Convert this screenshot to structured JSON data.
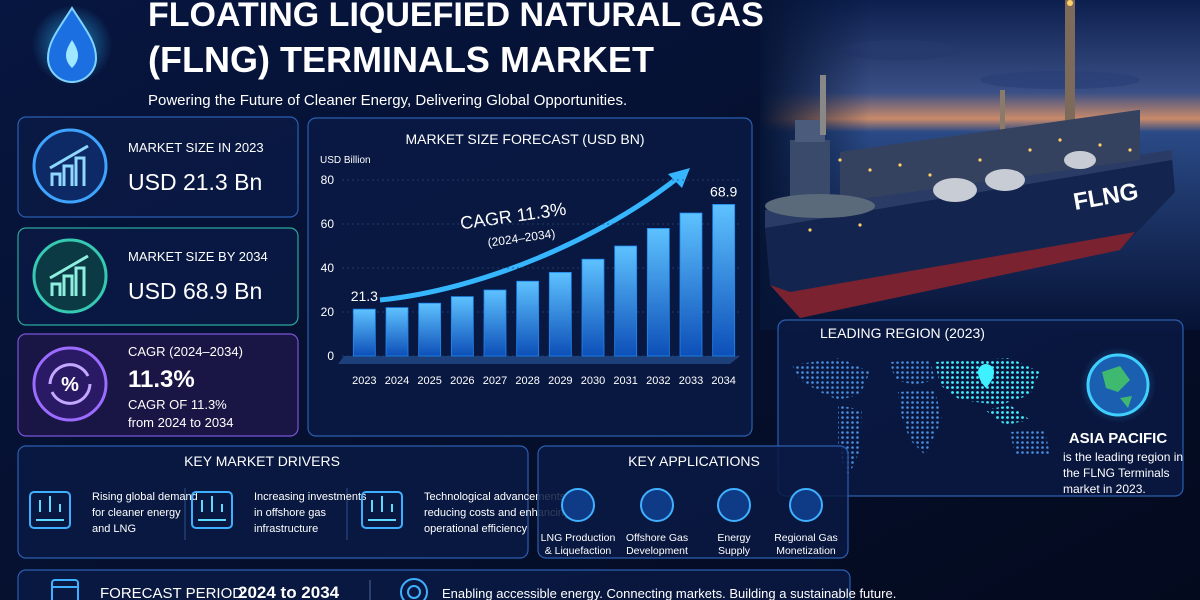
{
  "header": {
    "title_line1": "FLOATING LIQUEFIED NATURAL GAS",
    "title_line2": "(FLNG) TERMINALS MARKET",
    "subtitle": "Powering the Future of Cleaner Energy, Delivering Global Opportunities."
  },
  "stats": [
    {
      "label": "MARKET SIZE IN 2023",
      "value": "USD 21.3 Bn"
    },
    {
      "label": "MARKET SIZE BY 2034",
      "value": "USD 68.9 Bn"
    },
    {
      "label": "CAGR (2024–2034)",
      "value": "11.3%",
      "note_line1": "CAGR OF 11.3%",
      "note_line2": "from 2024 to 2034"
    }
  ],
  "chart_data": {
    "type": "bar",
    "title": "MARKET SIZE FORECAST (USD BN)",
    "y_label": "USD Billion",
    "annotation": "CAGR 11.3%",
    "annotation_sub": "(2024–2034)",
    "categories": [
      "2023",
      "2024",
      "2025",
      "2026",
      "2027",
      "2028",
      "2029",
      "2030",
      "2031",
      "2032",
      "2033",
      "2034"
    ],
    "values": [
      21.3,
      22,
      24,
      27,
      30,
      34,
      38,
      44,
      50,
      58,
      65,
      68.9
    ],
    "color": "#1e88f0",
    "ylim": [
      0,
      80
    ],
    "yticks": [
      0,
      20,
      40,
      60,
      80
    ],
    "grid": true
  },
  "ship_label": "FLNG",
  "region": {
    "title": "LEADING REGION (2023)",
    "name": "ASIA PACIFIC",
    "desc_lines": [
      "is the leading region in",
      "the FLNG Terminals",
      "market in 2023."
    ]
  },
  "drivers": {
    "title": "KEY MARKET DRIVERS",
    "items": [
      [
        "Rising global demand",
        "for cleaner energy",
        "and LNG"
      ],
      [
        "Increasing investments",
        "in offshore gas",
        "infrastructure"
      ],
      [
        "Technological advancements",
        "reducing costs and enhancing",
        "operational efficiency"
      ]
    ]
  },
  "applications": {
    "title": "KEY APPLICATIONS",
    "items": [
      [
        "LNG Production",
        "& Liquefaction"
      ],
      [
        "Offshore Gas",
        "Development"
      ],
      [
        "Energy",
        "Supply"
      ],
      [
        "Regional Gas",
        "Monetization"
      ]
    ]
  },
  "footer": {
    "forecast_label": "FORECAST PERIOD",
    "forecast_value": "2024 to 2034",
    "tagline": "Enabling accessible energy. Connecting markets. Building a sustainable future."
  }
}
